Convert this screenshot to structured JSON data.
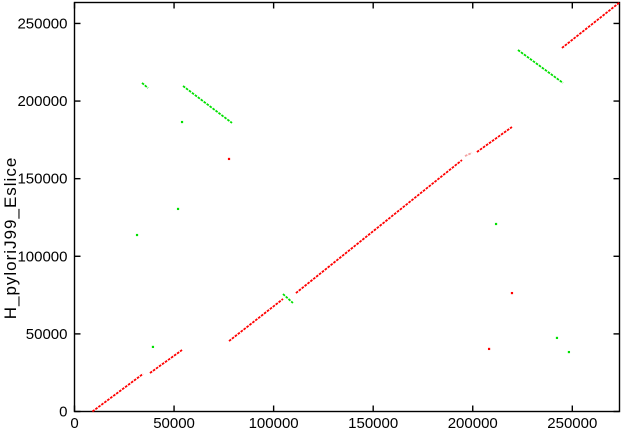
{
  "figure": {
    "background": "#ffffff",
    "border_color": "#000000",
    "title": ""
  },
  "chart_data": {
    "type": "scatter",
    "subtype": "dna-alignment-dotplot",
    "title": "",
    "xlabel": "",
    "ylabel": "H_pyloriJ99_Eslice",
    "xlim": [
      0,
      273700
    ],
    "ylim": [
      0,
      263500
    ],
    "x_ticks": [
      0,
      50000,
      100000,
      150000,
      200000,
      250000
    ],
    "y_ticks": [
      0,
      50000,
      100000,
      150000,
      200000,
      250000
    ],
    "grid": false,
    "legend": "none",
    "series": [
      {
        "name": "forward-matches",
        "color": "#ff0000",
        "segments": [
          [
            9000,
            0,
            34400,
            24200
          ],
          [
            37900,
            24800,
            54000,
            39600
          ],
          [
            77600,
            45400,
            104700,
            72500
          ],
          [
            111200,
            76300,
            194600,
            162000
          ],
          [
            202100,
            167200,
            219700,
            183300
          ],
          [
            244800,
            234200,
            273700,
            263500
          ]
        ],
        "points": [
          [
            77600,
            162700
          ],
          [
            219700,
            76300
          ],
          [
            208200,
            40300
          ]
        ]
      },
      {
        "name": "forward-matches-faint",
        "color": "#f2a3a3",
        "segments": [
          [
            196100,
            164600,
            199600,
            166600
          ]
        ],
        "points": []
      },
      {
        "name": "reverse-matches",
        "color": "#00e000",
        "segments": [
          [
            33900,
            211700,
            36900,
            208400
          ],
          [
            54500,
            209700,
            79100,
            185900
          ],
          [
            104700,
            75700,
            109700,
            69900
          ],
          [
            222700,
            232900,
            245300,
            211700
          ]
        ],
        "points": [
          [
            52000,
            130500
          ],
          [
            31400,
            113700
          ],
          [
            211700,
            120800
          ],
          [
            242300,
            47400
          ],
          [
            248300,
            38300
          ],
          [
            39400,
            41600
          ],
          [
            54000,
            186500
          ]
        ]
      }
    ]
  }
}
